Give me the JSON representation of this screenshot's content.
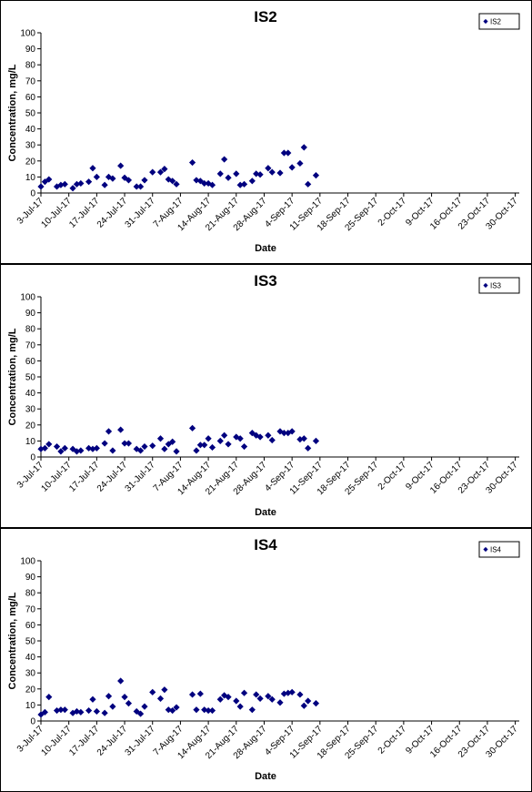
{
  "chart_data": [
    {
      "type": "scatter",
      "title": "IS2",
      "xlabel": "Date",
      "ylabel": "Concentration, mg/L",
      "ylim": [
        0,
        100
      ],
      "y_ticks": [
        0,
        10,
        20,
        30,
        40,
        50,
        60,
        70,
        80,
        90,
        100
      ],
      "x_tick_labels": [
        "3-Jul-17",
        "10-Jul-17",
        "17-Jul-17",
        "24-Jul-17",
        "31-Jul-17",
        "7-Aug-17",
        "14-Aug-17",
        "21-Aug-17",
        "28-Aug-17",
        "4-Sep-17",
        "11-Sep-17",
        "18-Sep-17",
        "25-Sep-17",
        "2-Oct-17",
        "9-Oct-17",
        "16-Oct-17",
        "23-Oct-17",
        "30-Oct-17"
      ],
      "x_range": [
        "2017-07-03",
        "2017-10-31"
      ],
      "grid": false,
      "legend_position": "top-right",
      "marker_color": "#00007F",
      "series": [
        {
          "name": "IS2",
          "points": [
            {
              "x": "2017-07-03",
              "y": 4
            },
            {
              "x": "2017-07-04",
              "y": 7
            },
            {
              "x": "2017-07-05",
              "y": 8.5
            },
            {
              "x": "2017-07-07",
              "y": 4
            },
            {
              "x": "2017-07-08",
              "y": 5
            },
            {
              "x": "2017-07-09",
              "y": 5.5
            },
            {
              "x": "2017-07-11",
              "y": 3
            },
            {
              "x": "2017-07-12",
              "y": 5.5
            },
            {
              "x": "2017-07-13",
              "y": 6
            },
            {
              "x": "2017-07-15",
              "y": 7
            },
            {
              "x": "2017-07-16",
              "y": 15.5
            },
            {
              "x": "2017-07-17",
              "y": 10
            },
            {
              "x": "2017-07-19",
              "y": 5
            },
            {
              "x": "2017-07-20",
              "y": 10
            },
            {
              "x": "2017-07-21",
              "y": 9
            },
            {
              "x": "2017-07-23",
              "y": 17
            },
            {
              "x": "2017-07-24",
              "y": 9.5
            },
            {
              "x": "2017-07-25",
              "y": 8
            },
            {
              "x": "2017-07-27",
              "y": 4
            },
            {
              "x": "2017-07-28",
              "y": 4
            },
            {
              "x": "2017-07-29",
              "y": 8
            },
            {
              "x": "2017-07-31",
              "y": 13
            },
            {
              "x": "2017-08-02",
              "y": 13
            },
            {
              "x": "2017-08-03",
              "y": 15
            },
            {
              "x": "2017-08-04",
              "y": 8.5
            },
            {
              "x": "2017-08-05",
              "y": 7.5
            },
            {
              "x": "2017-08-06",
              "y": 5.5
            },
            {
              "x": "2017-08-10",
              "y": 19
            },
            {
              "x": "2017-08-11",
              "y": 8
            },
            {
              "x": "2017-08-12",
              "y": 7.5
            },
            {
              "x": "2017-08-13",
              "y": 6
            },
            {
              "x": "2017-08-14",
              "y": 6
            },
            {
              "x": "2017-08-15",
              "y": 5
            },
            {
              "x": "2017-08-17",
              "y": 12
            },
            {
              "x": "2017-08-18",
              "y": 21
            },
            {
              "x": "2017-08-19",
              "y": 9.5
            },
            {
              "x": "2017-08-21",
              "y": 12
            },
            {
              "x": "2017-08-22",
              "y": 5
            },
            {
              "x": "2017-08-23",
              "y": 5.5
            },
            {
              "x": "2017-08-25",
              "y": 7.5
            },
            {
              "x": "2017-08-26",
              "y": 12
            },
            {
              "x": "2017-08-27",
              "y": 11.5
            },
            {
              "x": "2017-08-29",
              "y": 15.5
            },
            {
              "x": "2017-08-30",
              "y": 13
            },
            {
              "x": "2017-09-01",
              "y": 12.5
            },
            {
              "x": "2017-09-02",
              "y": 25
            },
            {
              "x": "2017-09-03",
              "y": 25
            },
            {
              "x": "2017-09-04",
              "y": 16
            },
            {
              "x": "2017-09-06",
              "y": 18.5
            },
            {
              "x": "2017-09-07",
              "y": 28.5
            },
            {
              "x": "2017-09-08",
              "y": 5.5
            },
            {
              "x": "2017-09-10",
              "y": 11
            }
          ]
        }
      ]
    },
    {
      "type": "scatter",
      "title": "IS3",
      "xlabel": "Date",
      "ylabel": "Concentration, mg/L",
      "ylim": [
        0,
        100
      ],
      "y_ticks": [
        0,
        10,
        20,
        30,
        40,
        50,
        60,
        70,
        80,
        90,
        100
      ],
      "x_tick_labels": [
        "3-Jul-17",
        "10-Jul-17",
        "17-Jul-17",
        "24-Jul-17",
        "31-Jul-17",
        "7-Aug-17",
        "14-Aug-17",
        "21-Aug-17",
        "28-Aug-17",
        "4-Sep-17",
        "11-Sep-17",
        "18-Sep-17",
        "25-Sep-17",
        "2-Oct-17",
        "9-Oct-17",
        "16-Oct-17",
        "23-Oct-17",
        "30-Oct-17"
      ],
      "x_range": [
        "2017-07-03",
        "2017-10-31"
      ],
      "grid": false,
      "legend_position": "top-right",
      "marker_color": "#00007F",
      "series": [
        {
          "name": "IS3",
          "points": [
            {
              "x": "2017-07-03",
              "y": 5
            },
            {
              "x": "2017-07-04",
              "y": 5.5
            },
            {
              "x": "2017-07-05",
              "y": 8
            },
            {
              "x": "2017-07-07",
              "y": 6.5
            },
            {
              "x": "2017-07-08",
              "y": 3.5
            },
            {
              "x": "2017-07-09",
              "y": 5.5
            },
            {
              "x": "2017-07-11",
              "y": 5
            },
            {
              "x": "2017-07-12",
              "y": 3.5
            },
            {
              "x": "2017-07-13",
              "y": 4
            },
            {
              "x": "2017-07-15",
              "y": 5.5
            },
            {
              "x": "2017-07-16",
              "y": 5
            },
            {
              "x": "2017-07-17",
              "y": 5.5
            },
            {
              "x": "2017-07-19",
              "y": 8.5
            },
            {
              "x": "2017-07-20",
              "y": 16
            },
            {
              "x": "2017-07-21",
              "y": 4
            },
            {
              "x": "2017-07-23",
              "y": 17
            },
            {
              "x": "2017-07-24",
              "y": 8.5
            },
            {
              "x": "2017-07-25",
              "y": 8.5
            },
            {
              "x": "2017-07-27",
              "y": 5
            },
            {
              "x": "2017-07-28",
              "y": 4
            },
            {
              "x": "2017-07-29",
              "y": 6.5
            },
            {
              "x": "2017-07-31",
              "y": 7
            },
            {
              "x": "2017-08-02",
              "y": 11.5
            },
            {
              "x": "2017-08-03",
              "y": 5
            },
            {
              "x": "2017-08-04",
              "y": 8
            },
            {
              "x": "2017-08-05",
              "y": 9.5
            },
            {
              "x": "2017-08-06",
              "y": 3.5
            },
            {
              "x": "2017-08-10",
              "y": 18
            },
            {
              "x": "2017-08-11",
              "y": 4
            },
            {
              "x": "2017-08-12",
              "y": 7.5
            },
            {
              "x": "2017-08-13",
              "y": 7.5
            },
            {
              "x": "2017-08-14",
              "y": 11.5
            },
            {
              "x": "2017-08-15",
              "y": 6
            },
            {
              "x": "2017-08-17",
              "y": 10
            },
            {
              "x": "2017-08-18",
              "y": 13.5
            },
            {
              "x": "2017-08-19",
              "y": 8
            },
            {
              "x": "2017-08-21",
              "y": 12.5
            },
            {
              "x": "2017-08-22",
              "y": 11.5
            },
            {
              "x": "2017-08-23",
              "y": 6.5
            },
            {
              "x": "2017-08-25",
              "y": 15
            },
            {
              "x": "2017-08-26",
              "y": 13.5
            },
            {
              "x": "2017-08-27",
              "y": 12.5
            },
            {
              "x": "2017-08-29",
              "y": 13.5
            },
            {
              "x": "2017-08-30",
              "y": 10.5
            },
            {
              "x": "2017-09-01",
              "y": 16
            },
            {
              "x": "2017-09-02",
              "y": 15
            },
            {
              "x": "2017-09-03",
              "y": 15
            },
            {
              "x": "2017-09-04",
              "y": 16
            },
            {
              "x": "2017-09-06",
              "y": 11
            },
            {
              "x": "2017-09-07",
              "y": 11.5
            },
            {
              "x": "2017-09-08",
              "y": 5.5
            },
            {
              "x": "2017-09-10",
              "y": 10
            }
          ]
        }
      ]
    },
    {
      "type": "scatter",
      "title": "IS4",
      "xlabel": "Date",
      "ylabel": "Concentration, mg/L",
      "ylim": [
        0,
        100
      ],
      "y_ticks": [
        0,
        10,
        20,
        30,
        40,
        50,
        60,
        70,
        80,
        90,
        100
      ],
      "x_tick_labels": [
        "3-Jul-17",
        "10-Jul-17",
        "17-Jul-17",
        "24-Jul-17",
        "31-Jul-17",
        "7-Aug-17",
        "14-Aug-17",
        "21-Aug-17",
        "28-Aug-17",
        "4-Sep-17",
        "11-Sep-17",
        "18-Sep-17",
        "25-Sep-17",
        "2-Oct-17",
        "9-Oct-17",
        "16-Oct-17",
        "23-Oct-17",
        "30-Oct-17"
      ],
      "x_range": [
        "2017-07-03",
        "2017-10-31"
      ],
      "grid": false,
      "legend_position": "top-right",
      "marker_color": "#00007F",
      "series": [
        {
          "name": "IS4",
          "points": [
            {
              "x": "2017-07-03",
              "y": 4
            },
            {
              "x": "2017-07-04",
              "y": 5.5
            },
            {
              "x": "2017-07-05",
              "y": 15
            },
            {
              "x": "2017-07-07",
              "y": 6.5
            },
            {
              "x": "2017-07-08",
              "y": 7
            },
            {
              "x": "2017-07-09",
              "y": 7
            },
            {
              "x": "2017-07-11",
              "y": 5
            },
            {
              "x": "2017-07-12",
              "y": 6
            },
            {
              "x": "2017-07-13",
              "y": 5.5
            },
            {
              "x": "2017-07-15",
              "y": 6.5
            },
            {
              "x": "2017-07-16",
              "y": 13.5
            },
            {
              "x": "2017-07-17",
              "y": 6
            },
            {
              "x": "2017-07-19",
              "y": 5
            },
            {
              "x": "2017-07-20",
              "y": 15.5
            },
            {
              "x": "2017-07-21",
              "y": 9
            },
            {
              "x": "2017-07-23",
              "y": 25
            },
            {
              "x": "2017-07-24",
              "y": 15
            },
            {
              "x": "2017-07-25",
              "y": 11
            },
            {
              "x": "2017-07-27",
              "y": 6
            },
            {
              "x": "2017-07-28",
              "y": 4.5
            },
            {
              "x": "2017-07-29",
              "y": 9
            },
            {
              "x": "2017-07-31",
              "y": 18
            },
            {
              "x": "2017-08-02",
              "y": 14
            },
            {
              "x": "2017-08-03",
              "y": 19.5
            },
            {
              "x": "2017-08-04",
              "y": 7
            },
            {
              "x": "2017-08-05",
              "y": 6.5
            },
            {
              "x": "2017-08-06",
              "y": 8.5
            },
            {
              "x": "2017-08-10",
              "y": 16.5
            },
            {
              "x": "2017-08-11",
              "y": 7
            },
            {
              "x": "2017-08-12",
              "y": 17
            },
            {
              "x": "2017-08-13",
              "y": 7
            },
            {
              "x": "2017-08-14",
              "y": 6.5
            },
            {
              "x": "2017-08-15",
              "y": 6.5
            },
            {
              "x": "2017-08-17",
              "y": 13.5
            },
            {
              "x": "2017-08-18",
              "y": 16
            },
            {
              "x": "2017-08-19",
              "y": 15
            },
            {
              "x": "2017-08-21",
              "y": 12.5
            },
            {
              "x": "2017-08-22",
              "y": 9
            },
            {
              "x": "2017-08-23",
              "y": 17.5
            },
            {
              "x": "2017-08-25",
              "y": 7
            },
            {
              "x": "2017-08-26",
              "y": 16.5
            },
            {
              "x": "2017-08-27",
              "y": 14
            },
            {
              "x": "2017-08-29",
              "y": 15.5
            },
            {
              "x": "2017-08-30",
              "y": 13.5
            },
            {
              "x": "2017-09-01",
              "y": 11.5
            },
            {
              "x": "2017-09-02",
              "y": 17
            },
            {
              "x": "2017-09-03",
              "y": 17.5
            },
            {
              "x": "2017-09-04",
              "y": 18
            },
            {
              "x": "2017-09-06",
              "y": 16.5
            },
            {
              "x": "2017-09-07",
              "y": 9.5
            },
            {
              "x": "2017-09-08",
              "y": 12.5
            },
            {
              "x": "2017-09-10",
              "y": 11
            }
          ]
        }
      ]
    }
  ]
}
